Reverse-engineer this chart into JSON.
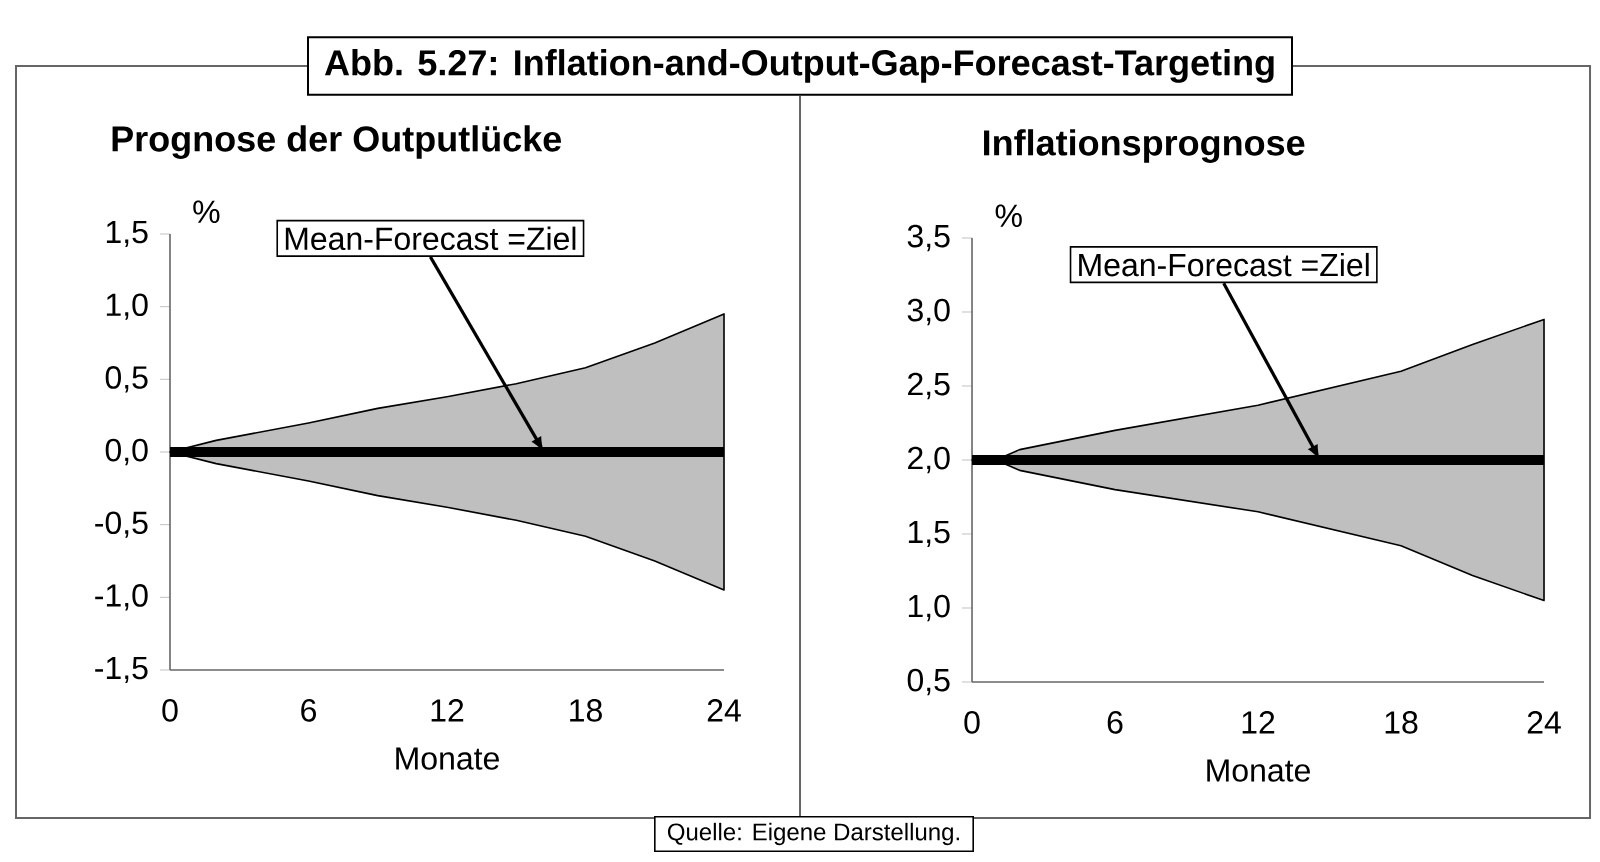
{
  "chart_data": [
    {
      "type": "line",
      "title": "Prognose der Outputlücke",
      "xlabel": "Monate",
      "ylabel": "%",
      "series": [
        {
          "color": "#000000",
          "x": [
            0,
            2,
            6,
            9,
            12,
            15,
            18,
            21,
            24
          ],
          "values": [
            0,
            0,
            0,
            0,
            0,
            0,
            0,
            0,
            0
          ],
          "upper": [
            0,
            0.08,
            0.2,
            0.3,
            0.38,
            0.47,
            0.58,
            0.75,
            0.95
          ],
          "lower": [
            0,
            -0.08,
            -0.2,
            -0.3,
            -0.38,
            -0.47,
            -0.58,
            -0.75,
            -0.95
          ]
        }
      ],
      "xlim": [
        0,
        24
      ],
      "xticks": [
        0,
        6,
        12,
        18,
        24
      ],
      "ylim": [
        -1.5,
        1.5
      ],
      "yticks": [
        {
          "value": -1.5,
          "label": "-1,5"
        },
        {
          "value": -1.0,
          "label": "-1,0"
        },
        {
          "value": -0.5,
          "label": "-0,5"
        },
        {
          "value": 0,
          "label": "0,0"
        },
        {
          "value": 0.5,
          "label": "0,5"
        },
        {
          "value": 1.0,
          "label": "1,0"
        },
        {
          "value": 1.5,
          "label": "1,5"
        }
      ],
      "annotations": [
        "Abb. 5.27: Inflation-and-Output-Gap-Forecast-Targeting",
        "Quelle: Eigene Darstellung.",
        {
          "text": "Mean-Forecast =Ziel",
          "x": 16.2,
          "y": 0
        }
      ]
    },
    {
      "type": "line",
      "title": "Inflationsprognose",
      "xlabel": "Monate",
      "ylabel": "%",
      "series": [
        {
          "color": "#000000",
          "x": [
            0,
            1,
            2,
            6,
            12,
            18,
            21,
            24
          ],
          "values": [
            2,
            2,
            2,
            2,
            2,
            2,
            2,
            2
          ],
          "upper": [
            2,
            2,
            2.07,
            2.2,
            2.37,
            2.6,
            2.78,
            2.95
          ],
          "lower": [
            2,
            2,
            1.93,
            1.8,
            1.65,
            1.42,
            1.22,
            1.05
          ]
        }
      ],
      "xlim": [
        0,
        24
      ],
      "xticks": [
        0,
        6,
        12,
        18,
        24
      ],
      "ylim": [
        0.5,
        3.5
      ],
      "yticks": [
        {
          "value": 0.5,
          "label": "0,5"
        },
        {
          "value": 1.0,
          "label": "1,0"
        },
        {
          "value": 1.5,
          "label": "1,5"
        },
        {
          "value": 2.0,
          "label": "2,0"
        },
        {
          "value": 2.5,
          "label": "2,5"
        },
        {
          "value": 3.0,
          "label": "3,0"
        },
        {
          "value": 3.5,
          "label": "3,5"
        }
      ],
      "annotations": [
        {
          "text": "Mean-Forecast =Ziel",
          "x": 14.6,
          "y": 2.0
        }
      ]
    }
  ]
}
